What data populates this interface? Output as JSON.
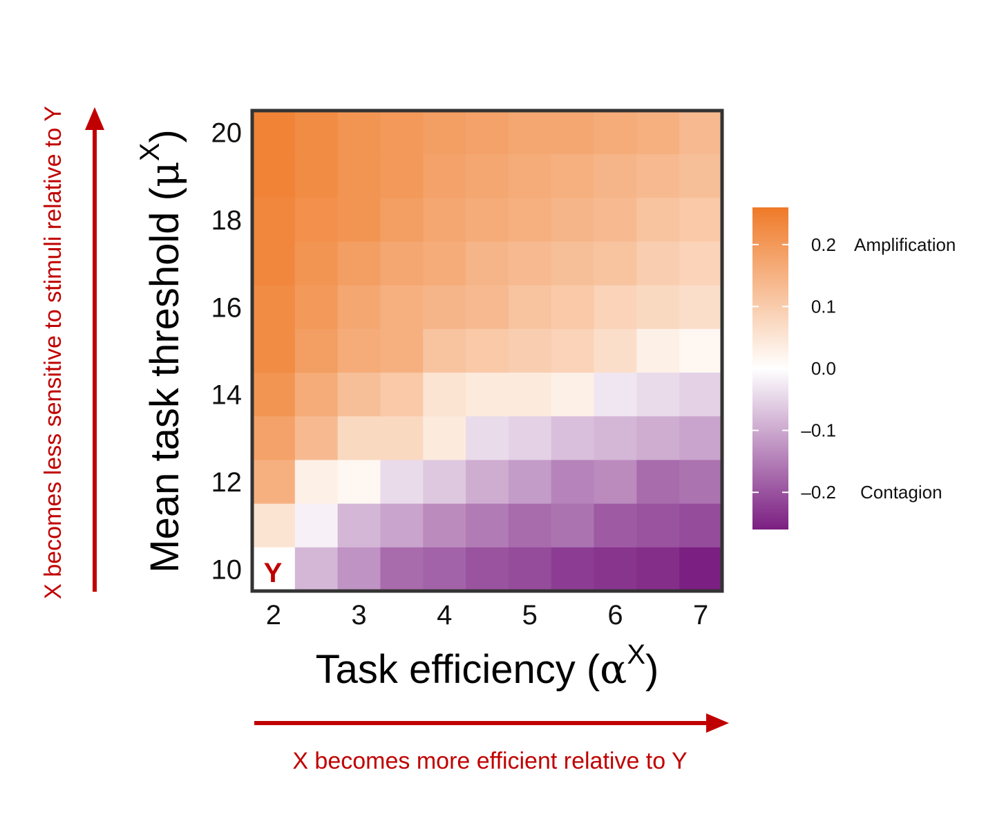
{
  "chart_data": {
    "type": "heatmap",
    "x_ticks": [
      "2",
      "3",
      "4",
      "5",
      "6",
      "7"
    ],
    "y_ticks": [
      "20",
      "18",
      "16",
      "14",
      "12",
      "10"
    ],
    "x_title_main": "Task efficiency (",
    "x_title_sym": "α",
    "x_title_sup": "X",
    "x_title_end": ")",
    "y_title_main": "Mean task threshold (",
    "y_title_sym": "μ",
    "y_title_sup": "X",
    "y_title_end": ")",
    "x_note": "X becomes more efficient relative to Y",
    "y_note": "X becomes less sensitive to stimuli relative to Y",
    "cell_marker": "Y",
    "x_values": [
      2,
      2.5,
      3,
      3.5,
      4,
      4.5,
      5,
      5.5,
      6,
      6.5,
      7
    ],
    "y_values": [
      20,
      19,
      18,
      17,
      16,
      15,
      14,
      13,
      12,
      11,
      10
    ],
    "values": [
      [
        0.24,
        0.22,
        0.2,
        0.19,
        0.18,
        0.17,
        0.16,
        0.16,
        0.15,
        0.14,
        0.12
      ],
      [
        0.24,
        0.22,
        0.2,
        0.19,
        0.17,
        0.16,
        0.15,
        0.14,
        0.13,
        0.12,
        0.11
      ],
      [
        0.23,
        0.21,
        0.2,
        0.18,
        0.16,
        0.15,
        0.14,
        0.13,
        0.12,
        0.1,
        0.09
      ],
      [
        0.23,
        0.2,
        0.18,
        0.16,
        0.15,
        0.13,
        0.12,
        0.11,
        0.1,
        0.08,
        0.07
      ],
      [
        0.22,
        0.19,
        0.16,
        0.14,
        0.13,
        0.12,
        0.1,
        0.09,
        0.07,
        0.06,
        0.05
      ],
      [
        0.22,
        0.18,
        0.15,
        0.14,
        0.1,
        0.09,
        0.08,
        0.07,
        0.05,
        0.02,
        0.01
      ],
      [
        0.2,
        0.15,
        0.11,
        0.09,
        0.04,
        0.03,
        0.03,
        0.02,
        -0.02,
        -0.03,
        -0.04
      ],
      [
        0.17,
        0.12,
        0.06,
        0.06,
        0.03,
        -0.03,
        -0.04,
        -0.06,
        -0.07,
        -0.08,
        -0.09
      ],
      [
        0.14,
        0.02,
        0.01,
        -0.03,
        -0.05,
        -0.08,
        -0.1,
        -0.13,
        -0.12,
        -0.16,
        -0.15
      ],
      [
        0.04,
        -0.01,
        -0.07,
        -0.09,
        -0.12,
        -0.14,
        -0.16,
        -0.15,
        -0.18,
        -0.19,
        -0.2
      ],
      [
        0.0,
        -0.07,
        -0.11,
        -0.16,
        -0.17,
        -0.19,
        -0.2,
        -0.22,
        -0.23,
        -0.24,
        -0.26
      ]
    ],
    "colorbar": {
      "range": [
        -0.26,
        0.26
      ],
      "ticks": [
        {
          "value": 0.2,
          "label": "0.2",
          "note": "Amplification"
        },
        {
          "value": 0.1,
          "label": "0.1",
          "note": ""
        },
        {
          "value": 0.0,
          "label": "0.0",
          "note": ""
        },
        {
          "value": -0.1,
          "label": "–0.1",
          "note": ""
        },
        {
          "value": -0.2,
          "label": "–0.2",
          "note": "Contagion"
        }
      ],
      "color_max": "#ef7a28",
      "color_mid": "#ffffff",
      "color_min": "#7b1f82"
    },
    "colors": {
      "frame": "#333333",
      "annotation": "#c00000"
    }
  }
}
